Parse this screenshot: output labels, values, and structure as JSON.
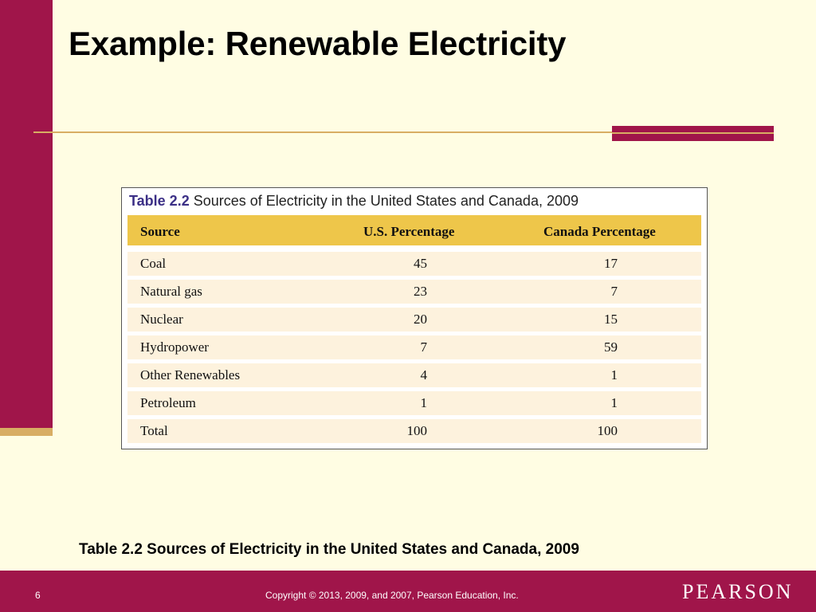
{
  "slide": {
    "title": "Example: Renewable Electricity",
    "caption": "Table 2.2 Sources of Electricity in the United States and Canada, 2009"
  },
  "table": {
    "label": "Table 2.2",
    "title": "Sources of Electricity in the United States and Canada, 2009",
    "columns": [
      "Source",
      "U.S. Percentage",
      "Canada Percentage"
    ],
    "rows": [
      [
        "Coal",
        "45",
        "17"
      ],
      [
        "Natural gas",
        "23",
        "7"
      ],
      [
        "Nuclear",
        "20",
        "15"
      ],
      [
        "Hydropower",
        "7",
        "59"
      ],
      [
        "Other Renewables",
        "4",
        "1"
      ],
      [
        "Petroleum",
        "1",
        "1"
      ],
      [
        "Total",
        "100",
        "100"
      ]
    ]
  },
  "footer": {
    "page_number": "6",
    "copyright": "Copyright © 2013, 2009, and 2007, Pearson Education, Inc.",
    "brand": "PEARSON"
  },
  "colors": {
    "background": "#fffde3",
    "accent": "#a0154a",
    "gold": "#d8ad63",
    "table_header": "#eec64a",
    "table_row": "#fdf2dd"
  }
}
